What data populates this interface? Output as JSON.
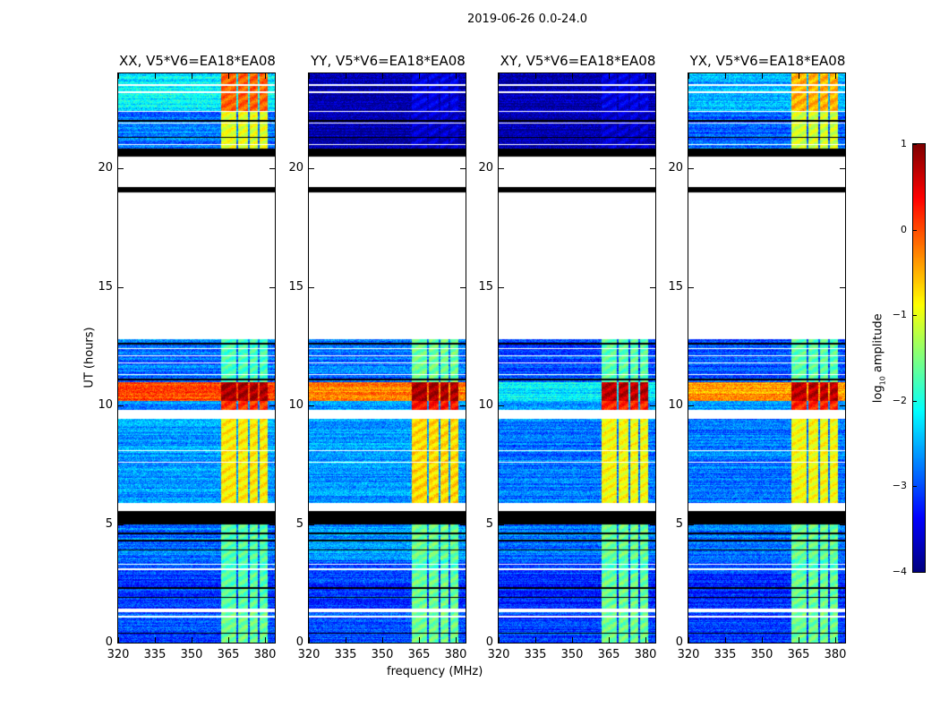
{
  "title": "2019-06-26 0.0-24.0",
  "chart_data": {
    "type": "heatmap",
    "title": "2019-06-26 0.0-24.0",
    "xlabel": "frequency (MHz)",
    "ylabel": "UT (hours)",
    "xlim": [
      320,
      384
    ],
    "ylim": [
      0,
      24
    ],
    "xticks": [
      "320",
      "335",
      "350",
      "365",
      "380"
    ],
    "yticks": [
      "0",
      "5",
      "10",
      "15",
      "20"
    ],
    "colorbar": {
      "label": "log10 amplitude",
      "range": [
        -4,
        1
      ],
      "ticks": [
        "1",
        "0",
        "−1",
        "−2",
        "−3",
        "−4"
      ],
      "colormap": "jet"
    },
    "rfi_band_mhz": [
      362,
      381
    ],
    "rfi_gaps_mhz": [
      368.5,
      373.5,
      377.5
    ],
    "white_lines_hours": [
      1.1,
      3.1,
      3.3,
      5.85,
      7.6,
      8.1,
      11.3,
      11.8,
      12.1,
      12.4,
      21.0,
      21.9,
      22.4,
      23.2,
      23.5
    ],
    "black_lines_hours": [
      0.4,
      1.9,
      2.3,
      3.9,
      4.3,
      4.6,
      11.1,
      12.6,
      20.8,
      21.3,
      22.0
    ],
    "panels": [
      {
        "title": "XX, V5*V6=EA18*EA08",
        "segments": [
          [
            0,
            1.3,
            -3.0,
            -1.6
          ],
          [
            1.3,
            1.45,
            "white"
          ],
          [
            1.45,
            2.9,
            -3.1,
            -1.7
          ],
          [
            2.9,
            3.5,
            -3.0,
            -1.8
          ],
          [
            3.5,
            5.0,
            -2.8,
            -1.7
          ],
          [
            5.0,
            5.55,
            "black"
          ],
          [
            5.55,
            5.8,
            "white"
          ],
          [
            5.8,
            9.45,
            -2.6,
            -0.8
          ],
          [
            9.45,
            9.8,
            "white"
          ],
          [
            9.8,
            10.2,
            -2.6,
            0.1
          ],
          [
            10.2,
            11.0,
            0.0,
            0.8
          ],
          [
            11.0,
            12.8,
            -2.8,
            -1.8
          ],
          [
            12.8,
            19.0,
            "white"
          ],
          [
            19.0,
            19.2,
            "black"
          ],
          [
            19.2,
            20.5,
            "white"
          ],
          [
            20.5,
            20.75,
            "black"
          ],
          [
            20.75,
            22.4,
            -2.8,
            -1.0
          ],
          [
            22.4,
            24,
            -2.2,
            -0.1
          ]
        ]
      },
      {
        "title": "YY, V5*V6=EA18*EA08",
        "segments": [
          [
            0,
            1.3,
            -3.0,
            -1.6
          ],
          [
            1.3,
            1.45,
            "white"
          ],
          [
            1.45,
            2.9,
            -3.1,
            -1.6
          ],
          [
            2.9,
            3.5,
            -3.0,
            -1.8
          ],
          [
            3.5,
            5.0,
            -2.6,
            -1.6
          ],
          [
            5.0,
            5.55,
            "black"
          ],
          [
            5.55,
            5.8,
            "white"
          ],
          [
            5.8,
            9.45,
            -2.6,
            -0.7
          ],
          [
            9.45,
            9.8,
            "white"
          ],
          [
            9.8,
            10.2,
            -2.6,
            0.3
          ],
          [
            10.2,
            11.0,
            -0.3,
            0.8
          ],
          [
            11.0,
            12.8,
            -2.8,
            -1.6
          ],
          [
            12.8,
            19.0,
            "white"
          ],
          [
            19.0,
            19.2,
            "black"
          ],
          [
            19.2,
            20.5,
            "white"
          ],
          [
            20.5,
            20.75,
            "black"
          ],
          [
            20.75,
            22.4,
            -3.8,
            -3.6
          ],
          [
            22.4,
            24,
            -3.8,
            -3.5
          ]
        ]
      },
      {
        "title": "XY, V5*V6=EA18*EA08",
        "segments": [
          [
            0,
            1.3,
            -3.1,
            -1.6
          ],
          [
            1.3,
            1.45,
            "white"
          ],
          [
            1.45,
            2.9,
            -3.2,
            -1.6
          ],
          [
            2.9,
            3.5,
            -3.0,
            -1.8
          ],
          [
            3.5,
            5.0,
            -2.8,
            -1.6
          ],
          [
            5.0,
            5.55,
            "black"
          ],
          [
            5.55,
            5.8,
            "white"
          ],
          [
            5.8,
            9.45,
            -2.8,
            -0.9
          ],
          [
            9.45,
            9.8,
            "white"
          ],
          [
            9.8,
            10.2,
            -2.7,
            0.2
          ],
          [
            10.2,
            11.0,
            -2.2,
            0.7
          ],
          [
            11.0,
            12.8,
            -3.0,
            -1.7
          ],
          [
            12.8,
            19.0,
            "white"
          ],
          [
            19.0,
            19.2,
            "black"
          ],
          [
            19.2,
            20.5,
            "white"
          ],
          [
            20.5,
            20.75,
            "black"
          ],
          [
            20.75,
            22.4,
            -3.8,
            -3.6
          ],
          [
            22.4,
            24,
            -3.8,
            -3.5
          ]
        ]
      },
      {
        "title": "YX, V5*V6=EA18*EA08",
        "segments": [
          [
            0,
            1.3,
            -3.1,
            -1.6
          ],
          [
            1.3,
            1.45,
            "white"
          ],
          [
            1.45,
            2.9,
            -3.2,
            -1.6
          ],
          [
            2.9,
            3.5,
            -3.0,
            -1.8
          ],
          [
            3.5,
            5.0,
            -2.8,
            -1.6
          ],
          [
            5.0,
            5.55,
            "black"
          ],
          [
            5.55,
            5.8,
            "white"
          ],
          [
            5.8,
            9.45,
            -2.8,
            -0.9
          ],
          [
            9.45,
            9.8,
            "white"
          ],
          [
            9.8,
            10.2,
            -2.7,
            0.2
          ],
          [
            10.2,
            11.0,
            -0.4,
            0.7
          ],
          [
            11.0,
            12.8,
            -3.0,
            -1.7
          ],
          [
            12.8,
            19.0,
            "white"
          ],
          [
            19.0,
            19.2,
            "black"
          ],
          [
            19.2,
            20.5,
            "white"
          ],
          [
            20.5,
            20.75,
            "black"
          ],
          [
            20.75,
            22.4,
            -2.9,
            -1.1
          ],
          [
            22.4,
            24,
            -2.5,
            -0.5
          ]
        ]
      }
    ]
  }
}
